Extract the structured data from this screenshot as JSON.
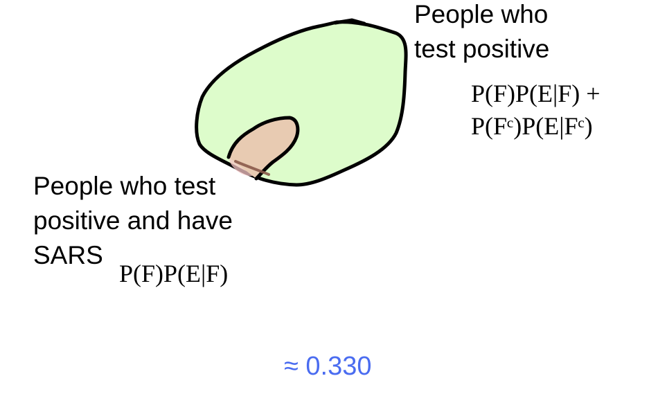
{
  "regions": {
    "test_positive": {
      "label_lines": [
        "People who",
        "test positive"
      ],
      "formula_lines": [
        "P(F)P(E|F) +",
        "P(Fᶜ)P(E|Fᶜ)"
      ],
      "fill_color": "#ddfccb"
    },
    "positive_and_sars": {
      "label_lines": [
        "People who test",
        "positive and have",
        "SARS"
      ],
      "formula": "P(F)P(E|F)",
      "fill_color": "#e8cbb2"
    }
  },
  "result": "≈ 0.330",
  "result_color": "#4a6cf0",
  "outline_color": "#000000"
}
